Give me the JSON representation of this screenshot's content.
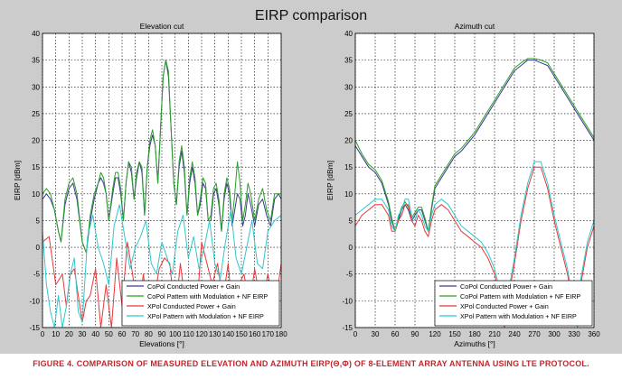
{
  "figure_title": "EIRP comparison",
  "caption": "FIGURE 4. COMPARISON OF MEASURED ELEVATION AND AZIMUTH EIRP(Θ,Φ) OF 8-ELEMENT ARRAY ANTENNA USING LTE PROTOCOL.",
  "colors": {
    "copol_conducted": "#3a3a8c",
    "copol_pattern": "#2aa02a",
    "xpol_conducted": "#e8383a",
    "xpol_pattern": "#2fc8cc",
    "figure_background": "#cccccc",
    "caption": "#c2272d"
  },
  "chart_data": [
    {
      "type": "line",
      "title": "Elevation cut",
      "xlabel": "Elevations [°]",
      "ylabel": "EIRP [dBm]",
      "xlim": [
        0,
        180
      ],
      "ylim": [
        -15,
        40
      ],
      "xticks": [
        "0",
        "10",
        "20",
        "30",
        "40",
        "50",
        "60",
        "70",
        "80",
        "90",
        "100",
        "110",
        "120",
        "130",
        "140",
        "150",
        "160",
        "170",
        "180"
      ],
      "yticks": [
        "-15",
        "-10",
        "-5",
        "0",
        "5",
        "10",
        "15",
        "20",
        "25",
        "30",
        "35",
        "40"
      ],
      "grid": true,
      "legend_position": "bottom-right",
      "series": [
        {
          "name": "CoPol Conducted Power + Gain",
          "x": [
            0,
            3,
            6,
            9,
            12,
            14,
            17,
            20,
            23,
            26,
            30,
            33,
            36,
            39,
            42,
            44,
            46,
            48,
            50,
            53,
            55,
            57,
            59,
            61,
            63,
            65,
            67,
            69,
            71,
            73,
            75,
            77,
            79,
            81,
            83,
            85,
            87,
            89,
            91,
            93,
            95,
            97,
            99,
            101,
            103,
            105,
            107,
            109,
            111,
            113,
            115,
            117,
            119,
            121,
            123,
            125,
            127,
            129,
            131,
            133,
            135,
            137,
            139,
            141,
            143,
            145,
            147,
            149,
            151,
            153,
            155,
            157,
            160,
            163,
            166,
            169,
            172,
            175,
            178,
            180
          ],
          "y": [
            9,
            10,
            9,
            7,
            3,
            1,
            8,
            11,
            12,
            9,
            1,
            -1,
            5,
            9,
            12,
            13,
            12,
            10,
            5,
            10,
            13,
            13,
            10,
            5,
            12,
            16,
            14,
            9,
            13,
            16,
            14,
            6,
            15,
            19,
            21,
            19,
            12,
            22,
            32,
            35,
            32,
            22,
            12,
            8,
            15,
            18,
            14,
            6,
            12,
            15,
            12,
            6,
            8,
            12,
            11,
            5,
            5,
            10,
            11,
            8,
            3,
            9,
            12,
            10,
            4,
            7,
            10,
            9,
            4,
            6,
            10,
            8,
            4,
            8,
            9,
            6,
            4,
            9,
            10,
            9
          ]
        },
        {
          "name": "CoPol Pattern with Modulation + NF EIRP",
          "x": [
            0,
            3,
            6,
            9,
            12,
            14,
            17,
            20,
            23,
            26,
            30,
            33,
            36,
            39,
            42,
            44,
            46,
            48,
            50,
            53,
            55,
            57,
            59,
            61,
            63,
            65,
            67,
            69,
            71,
            73,
            75,
            77,
            79,
            81,
            83,
            85,
            87,
            89,
            91,
            93,
            95,
            97,
            99,
            101,
            103,
            105,
            107,
            109,
            111,
            113,
            115,
            117,
            119,
            121,
            123,
            125,
            127,
            129,
            131,
            133,
            135,
            137,
            139,
            141,
            143,
            145,
            147,
            149,
            151,
            153,
            155,
            157,
            160,
            163,
            166,
            169,
            172,
            175,
            178,
            180
          ],
          "y": [
            10,
            11,
            10,
            7,
            3,
            1,
            9,
            12,
            13,
            10,
            1,
            -1,
            6,
            10,
            12,
            14,
            13,
            10,
            5,
            11,
            14,
            14,
            11,
            5,
            12,
            16,
            15,
            9,
            14,
            16,
            15,
            6,
            15,
            20,
            22,
            19,
            12,
            22,
            32,
            35,
            33,
            22,
            12,
            8,
            16,
            19,
            15,
            6,
            13,
            16,
            13,
            6,
            9,
            13,
            12,
            5,
            6,
            11,
            12,
            9,
            3,
            10,
            13,
            11,
            5,
            10,
            16,
            12,
            5,
            8,
            12,
            10,
            5,
            9,
            11,
            7,
            5,
            10,
            10,
            10
          ]
        },
        {
          "name": "XPol Conducted Power + Gain",
          "x": [
            0,
            5,
            10,
            15,
            18,
            21,
            24,
            27,
            30,
            33,
            36,
            40,
            44,
            48,
            52,
            56,
            60,
            64,
            68,
            72,
            76,
            80,
            84,
            88,
            92,
            96,
            100,
            104,
            108,
            112,
            116,
            120,
            124,
            128,
            132,
            136,
            140,
            144,
            148,
            152,
            156,
            160,
            165,
            170,
            175,
            180
          ],
          "y": [
            1,
            2,
            -7,
            -5,
            -11,
            -5,
            -4,
            -9,
            -14,
            -10,
            -9,
            -4,
            -15,
            -7,
            -15,
            -2,
            -11,
            1,
            -5,
            -14,
            -5,
            -12,
            -10,
            -4,
            -2,
            -3,
            -13,
            -3,
            -11,
            -9,
            -13,
            1,
            -3,
            -7,
            -3,
            -10,
            -3,
            -14,
            -7,
            -5,
            -11,
            -4,
            -11,
            -5,
            -12,
            -3
          ]
        },
        {
          "name": "XPol Pattern with Modulation + NF EIRP",
          "x": [
            0,
            3,
            6,
            9,
            12,
            15,
            18,
            21,
            24,
            27,
            30,
            34,
            38,
            42,
            46,
            50,
            54,
            58,
            62,
            66,
            70,
            74,
            78,
            82,
            86,
            90,
            94,
            98,
            102,
            106,
            110,
            114,
            118,
            122,
            126,
            130,
            134,
            138,
            142,
            146,
            150,
            154,
            158,
            162,
            166,
            170,
            175,
            180
          ],
          "y": [
            3,
            -7,
            -12,
            -15,
            -9,
            -15,
            -11,
            -5,
            -2,
            -12,
            -14,
            2,
            6,
            0,
            -3,
            -7,
            4,
            8,
            2,
            -4,
            0,
            2,
            5,
            -3,
            -5,
            1,
            -2,
            -5,
            3,
            6,
            -2,
            2,
            -4,
            0,
            5,
            -3,
            -6,
            1,
            7,
            -2,
            -5,
            0,
            5,
            -3,
            -4,
            3,
            5,
            6
          ]
        }
      ]
    },
    {
      "type": "line",
      "title": "Azimuth cut",
      "xlabel": "Azimuths [°]",
      "ylabel": "EIRP [dBm]",
      "xlim": [
        0,
        360
      ],
      "ylim": [
        -15,
        40
      ],
      "xticks": [
        "0",
        "30",
        "60",
        "90",
        "120",
        "150",
        "180",
        "210",
        "240",
        "270",
        "300",
        "330",
        "360"
      ],
      "yticks": [
        "-15",
        "-10",
        "-5",
        "0",
        "5",
        "10",
        "15",
        "20",
        "25",
        "30",
        "35",
        "40"
      ],
      "grid": true,
      "legend_position": "bottom-right",
      "series": [
        {
          "name": "CoPol Conducted Power + Gain",
          "x": [
            0,
            10,
            20,
            30,
            40,
            50,
            55,
            60,
            65,
            70,
            75,
            80,
            85,
            90,
            95,
            100,
            105,
            110,
            115,
            120,
            130,
            140,
            150,
            160,
            170,
            180,
            190,
            200,
            210,
            220,
            230,
            240,
            250,
            260,
            270,
            280,
            290,
            300,
            310,
            320,
            330,
            340,
            350,
            360
          ],
          "y": [
            19,
            17,
            15,
            14,
            12,
            8,
            5,
            3,
            5,
            7,
            8,
            7,
            5,
            6,
            7,
            7,
            5,
            3,
            7,
            11,
            13,
            15,
            17,
            18,
            19.5,
            21,
            23,
            25,
            27,
            29,
            31,
            33,
            34,
            35,
            35,
            34.5,
            34,
            32,
            30,
            28,
            26,
            24,
            22,
            20
          ]
        },
        {
          "name": "CoPol Pattern with Modulation + NF EIRP",
          "x": [
            0,
            10,
            20,
            30,
            40,
            50,
            55,
            60,
            65,
            70,
            75,
            80,
            85,
            90,
            95,
            100,
            105,
            110,
            115,
            120,
            130,
            140,
            150,
            160,
            170,
            180,
            190,
            200,
            210,
            220,
            230,
            240,
            250,
            260,
            270,
            280,
            290,
            300,
            310,
            320,
            330,
            340,
            350,
            360
          ],
          "y": [
            20,
            17.5,
            15.5,
            14.5,
            12.5,
            8.5,
            5.5,
            3,
            5.5,
            7.5,
            8.5,
            7.5,
            5.5,
            6.5,
            7.5,
            7.5,
            5.5,
            3,
            7.5,
            11.5,
            13.5,
            15.5,
            17.5,
            18.5,
            20,
            21.5,
            23.5,
            25.5,
            27.5,
            29.5,
            31.5,
            33.5,
            34.5,
            35.3,
            35.3,
            35,
            34.5,
            32.5,
            30.5,
            28.5,
            26.5,
            24.5,
            22.5,
            20.5
          ]
        },
        {
          "name": "XPol Conducted Power + Gain",
          "x": [
            0,
            10,
            20,
            30,
            40,
            50,
            55,
            60,
            65,
            70,
            75,
            80,
            85,
            90,
            95,
            100,
            105,
            110,
            115,
            120,
            130,
            140,
            150,
            160,
            170,
            180,
            190,
            200,
            210,
            220,
            225,
            230,
            240,
            250,
            260,
            270,
            280,
            290,
            300,
            310,
            320,
            330,
            335,
            340,
            350,
            360
          ],
          "y": [
            4,
            6,
            7,
            8,
            8,
            6,
            3,
            3,
            5,
            6,
            8,
            8,
            5,
            4,
            6,
            5,
            3,
            2,
            5,
            7,
            8,
            7,
            5,
            3,
            2,
            1,
            0,
            -2,
            -5,
            -10,
            -15,
            -10,
            -3,
            5,
            11,
            15,
            15,
            11,
            5,
            0,
            -5,
            -12,
            -15,
            -7,
            0,
            4
          ]
        },
        {
          "name": "XPol Pattern with Modulation + NF EIRP",
          "x": [
            0,
            10,
            20,
            30,
            40,
            50,
            55,
            60,
            65,
            70,
            75,
            80,
            85,
            90,
            95,
            100,
            105,
            110,
            115,
            120,
            130,
            140,
            150,
            160,
            170,
            180,
            190,
            200,
            210,
            220,
            225,
            230,
            240,
            250,
            260,
            270,
            280,
            290,
            300,
            310,
            320,
            330,
            335,
            340,
            350,
            360
          ],
          "y": [
            6,
            7,
            8,
            9,
            9,
            7,
            4,
            3,
            6,
            7,
            9,
            9,
            6,
            5,
            7,
            6,
            4,
            3,
            6,
            8,
            9,
            8,
            6,
            4,
            3,
            2,
            1,
            -1,
            -4,
            -9,
            -14,
            -9,
            -2,
            6,
            12,
            16,
            16,
            12,
            6,
            1,
            -4,
            -11,
            -15,
            -6,
            1,
            5
          ]
        }
      ]
    }
  ]
}
